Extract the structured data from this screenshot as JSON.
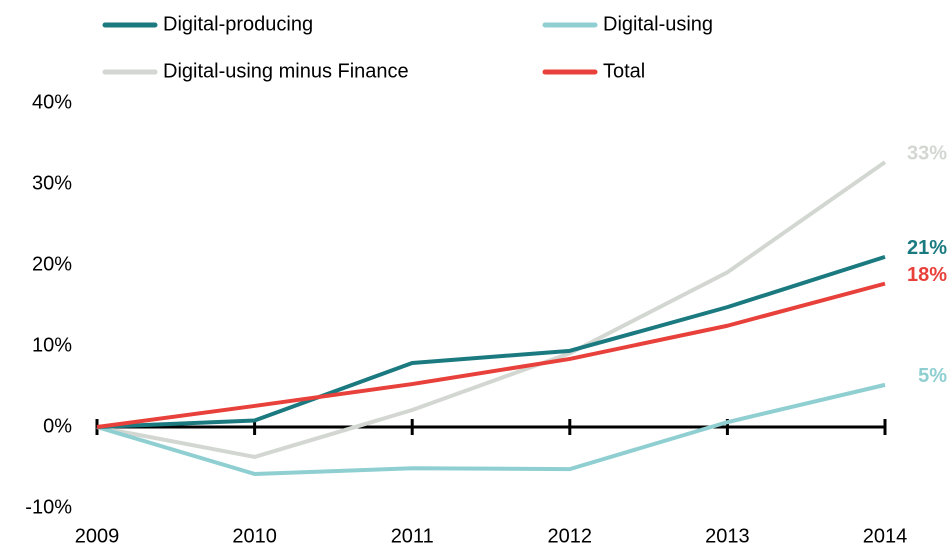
{
  "chart_data": {
    "type": "line",
    "categories": [
      "2009",
      "2010",
      "2011",
      "2012",
      "2013",
      "2014"
    ],
    "series": [
      {
        "name": "Digital-producing",
        "color": "#1b7a80",
        "values": [
          0,
          0.8,
          7.9,
          9.4,
          14.8,
          21
        ],
        "value_labels": [
          null,
          null,
          null,
          null,
          null,
          "21%"
        ]
      },
      {
        "name": "Digital-using",
        "color": "#8fcfd1",
        "values": [
          0,
          -5.8,
          -5.1,
          -5.2,
          0.6,
          5.2
        ],
        "value_labels": [
          null,
          null,
          null,
          null,
          null,
          "5%"
        ]
      },
      {
        "name": "Digital-using minus Finance",
        "color": "#d3d7d1",
        "values": [
          0,
          -3.7,
          2.1,
          9.1,
          19.1,
          32.7
        ],
        "value_labels": [
          null,
          null,
          null,
          null,
          null,
          "33%"
        ]
      },
      {
        "name": "Total",
        "color": "#e8413b",
        "values": [
          0,
          2.6,
          5.3,
          8.4,
          12.5,
          17.7
        ],
        "value_labels": [
          null,
          null,
          null,
          null,
          null,
          "18%"
        ]
      }
    ],
    "ylim": [
      -10,
      40
    ],
    "yticks": [
      {
        "value": -10,
        "label": "-10%"
      },
      {
        "value": 0,
        "label": "0%"
      },
      {
        "value": 10,
        "label": "10%"
      },
      {
        "value": 20,
        "label": "20%"
      },
      {
        "value": 30,
        "label": "30%"
      },
      {
        "value": 40,
        "label": "40%"
      }
    ],
    "grid": false
  }
}
